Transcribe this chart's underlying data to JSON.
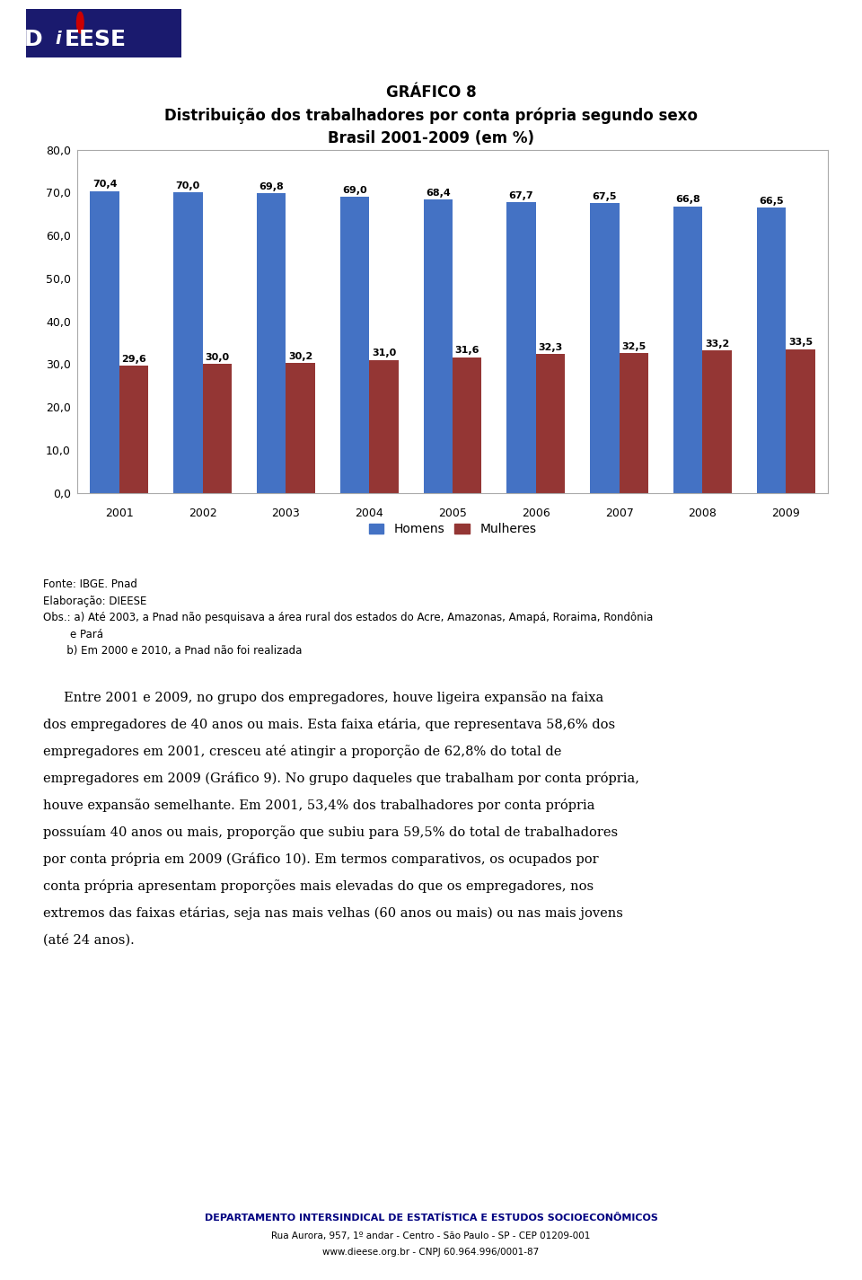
{
  "title_line1": "GRÁFICO 8",
  "title_line2": "Distribuição dos trabalhadores por conta própria segundo sexo",
  "title_line3": "Brasil 2001-2009 (em %)",
  "years": [
    2001,
    2002,
    2003,
    2004,
    2005,
    2006,
    2007,
    2008,
    2009
  ],
  "homens": [
    70.4,
    70.0,
    69.8,
    69.0,
    68.4,
    67.7,
    67.5,
    66.8,
    66.5
  ],
  "mulheres": [
    29.6,
    30.0,
    30.2,
    31.0,
    31.6,
    32.3,
    32.5,
    33.2,
    33.5
  ],
  "homens_color": "#4472C4",
  "mulheres_color": "#943634",
  "ylim": [
    0,
    80
  ],
  "yticks": [
    0.0,
    10.0,
    20.0,
    30.0,
    40.0,
    50.0,
    60.0,
    70.0,
    80.0
  ],
  "legend_homens": "Homens",
  "legend_mulheres": "Mulheres",
  "fonte": "Fonte: IBGE. Pnad",
  "elaboracao": "Elaboração: DIEESE",
  "obs_a": "Obs.: a) Até 2003, a Pnad não pesquisava a área rural dos estados do Acre, Amazonas, Amapá, Roraima, Rondônia",
  "obs_a2": "        e Pará",
  "obs_b": "       b) Em 2000 e 2010, a Pnad não foi realizada",
  "body_text_lines": [
    "     Entre 2001 e 2009, no grupo dos empregadores, houve ligeira expansão na faixa",
    "dos empregadores de 40 anos ou mais. Esta faixa etária, que representava 58,6% dos",
    "empregadores em 2001, cresceu até atingir a proporção de 62,8% do total de",
    "empregadores em 2009 (Gráfico 9). No grupo daqueles que trabalham por conta própria,",
    "houve expansão semelhante. Em 2001, 53,4% dos trabalhadores por conta própria",
    "possuíam 40 anos ou mais, proporção que subiu para 59,5% do total de trabalhadores",
    "por conta própria em 2009 (Gráfico 10). Em termos comparativos, os ocupados por",
    "conta própria apresentam proporções mais elevadas do que os empregadores, nos",
    "extremos das faixas etárias, seja nas mais velhas (60 anos ou mais) ou nas mais jovens",
    "(até 24 anos)."
  ],
  "footer_line1": "DEPARTAMENTO INTERSINDICAL DE ESTATÍSTICA E ESTUDOS SOCIOECONÔMICOS",
  "footer_line2": "Rua Aurora, 957, 1º andar - Centro - São Paulo - SP - CEP 01209-001",
  "footer_line3": "www.dieese.org.br - CNPJ 60.964.996/0001-87",
  "background_color": "#ffffff",
  "bar_width": 0.35,
  "chart_bg": "#ffffff"
}
